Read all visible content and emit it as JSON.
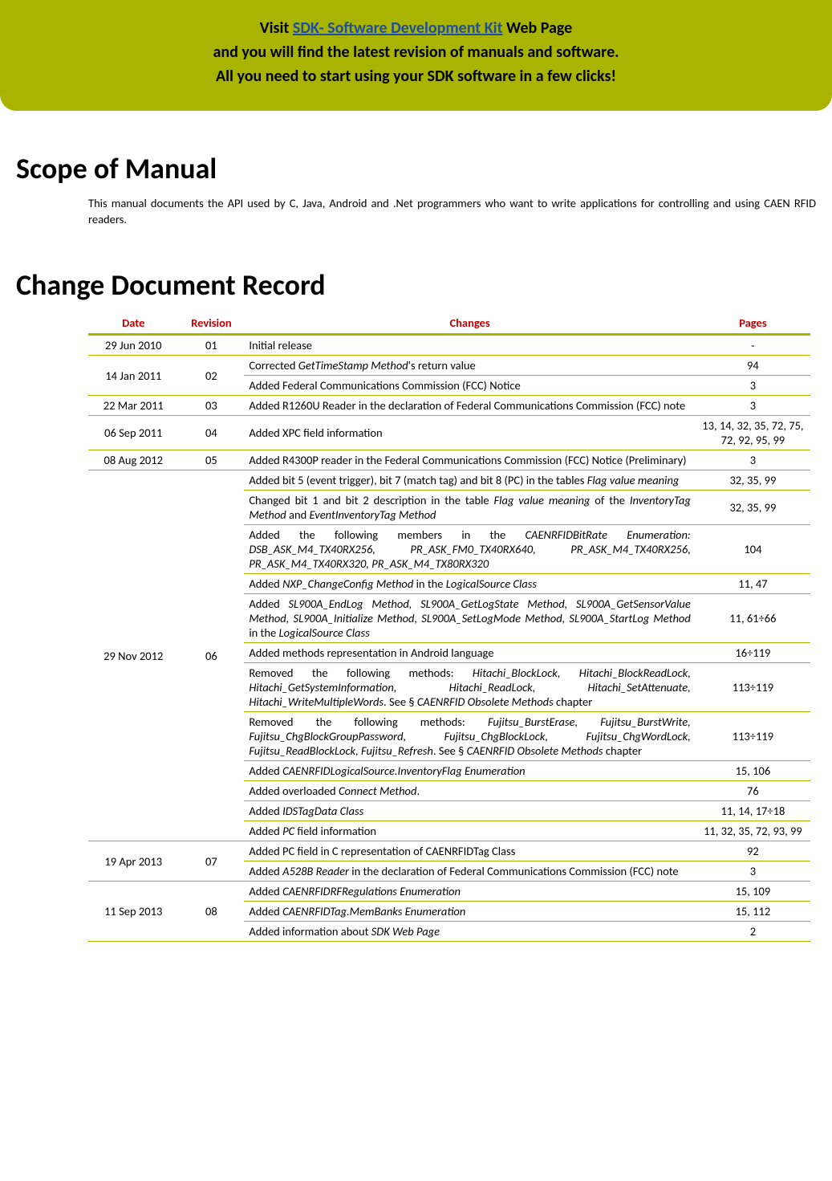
{
  "banner": {
    "line1_pre": "Visit ",
    "line1_link": "SDK- Software Development Kit",
    "line1_post": " Web Page",
    "line2": "and you will find the latest revision of manuals and software.",
    "line3": "All you need to start using your SDK software in a few clicks!"
  },
  "section1": {
    "title": "Scope of Manual",
    "body": "This manual documents the API used by C, Java, Android and .Net programmers who want to write applications for controlling and using CAEN RFID readers."
  },
  "section2": {
    "title": "Change Document Record"
  },
  "table": {
    "headers": {
      "date": "Date",
      "revision": "Revision",
      "changes": "Changes",
      "pages": "Pages"
    },
    "rows": [
      {
        "date": "29 Jun 2010",
        "rev": "01",
        "changes": "Initial release",
        "pages": "-"
      },
      {
        "date": "14 Jan 2011",
        "rev": "02",
        "rowspan": 2,
        "changes": "Corrected <i>GetTimeStamp Method</i>'s return value",
        "pages": "94"
      },
      {
        "changes": "Added Federal Communications Commission (FCC) Notice",
        "pages": "3"
      },
      {
        "date": "22 Mar 2011",
        "rev": "03",
        "changes": "Added R1260U Reader in the declaration of Federal Communications Commission (FCC) note",
        "pages": "3"
      },
      {
        "date": "06 Sep 2011",
        "rev": "04",
        "changes": "Added XPC field information",
        "pages": "13, 14, 32, 35, 72, 75, 72, 92, 95, 99"
      },
      {
        "date": "08 Aug 2012",
        "rev": "05",
        "changes": "Added R4300P reader in the Federal Communications Commission (FCC) Notice (Preliminary)",
        "pages": "3"
      },
      {
        "date": "29 Nov 2012",
        "rev": "06",
        "rowspan": 12,
        "changes": "Added bit 5 (event trigger), bit 7 (match tag) and bit 8 (PC) in the tables <i>Flag value meaning</i>",
        "pages": "32, 35, 99"
      },
      {
        "changes": "Changed bit 1 and bit 2 description in the table <i>Flag value meaning</i> of the <i>InventoryTag Method</i> and <i>EventInventoryTag Method</i>",
        "pages": "32, 35, 99"
      },
      {
        "changes": "Added the following members in the <i>CAENRFIDBitRate Enumeration: DSB_ASK_M4_TX40RX256, PR_ASK_FM0_TX40RX640, PR_ASK_M4_TX40RX256, PR_ASK_M4_TX40RX320, PR_ASK_M4_TX80RX320</i>",
        "pages": "104"
      },
      {
        "changes": "Added <i>NXP_ChangeConfig Method</i> in the <i>LogicalSource Class</i>",
        "pages": "11, 47"
      },
      {
        "changes": "Added <i>SL900A_EndLog Method, SL900A_GetLogState Method, SL900A_GetSensorValue Method, SL900A_Initialize Method, SL900A_SetLogMode Method, SL900A_StartLog Method</i> in the <i>LogicalSource Class</i>",
        "pages": "11, 61÷66"
      },
      {
        "changes": "Added methods representation in Android language",
        "pages": "16÷119"
      },
      {
        "changes": "Removed the following methods: <i>Hitachi_BlockLock, Hitachi_BlockReadLock, Hitachi_GetSystemInformation, Hitachi_ReadLock, Hitachi_SetAttenuate, Hitachi_WriteMultipleWords</i>. See § <i>CAENRFID Obsolete Methods</i> chapter",
        "pages": "113÷119"
      },
      {
        "changes": "Removed the following methods: <i>Fujitsu_BurstErase, Fujitsu_BurstWrite, Fujitsu_ChgBlockGroupPassword, Fujitsu_ChgBlockLock, Fujitsu_ChgWordLock, Fujitsu_ReadBlockLock, Fujitsu_Refresh</i>. See § <i>CAENRFID Obsolete Methods</i> chapter",
        "pages": "113÷119"
      },
      {
        "changes": "Added <i>CAENRFIDLogicalSource.InventoryFlag Enumeration</i>",
        "pages": "15, 106"
      },
      {
        "changes": "Added overloaded <i>Connect Method</i>.",
        "pages": "76"
      },
      {
        "changes": "Added <i>IDSTagData Class</i>",
        "pages": "11, 14, 17÷18"
      },
      {
        "changes": "Added <i>PC</i> field information",
        "pages": "11, 32, 35, 72, 93, 99"
      },
      {
        "date": "19 Apr 2013",
        "rev": "07",
        "rowspan": 2,
        "changes": "Added PC field in C representation of CAENRFIDTag Class",
        "pages": "92"
      },
      {
        "changes": "Added <i>A528B Reader</i> in the declaration of Federal Communications Commission (FCC) note",
        "pages": "3"
      },
      {
        "date": "11 Sep 2013",
        "rev": "08",
        "rowspan": 3,
        "changes": "Added <i>CAENRFIDRFRegulations Enumeration</i>",
        "pages": "15, 109"
      },
      {
        "changes": "Added <i>CAENRFIDTag.MemBanks Enumeration</i>",
        "pages": "15, 112"
      },
      {
        "changes": "Added information about <i>SDK Web Page</i>",
        "pages": "2"
      }
    ]
  },
  "colors": {
    "banner_bg": "#a8b400",
    "link": "#1f4e9c",
    "header_text": "#c00000",
    "border": "#a8b400",
    "text": "#000000"
  },
  "fonts": {
    "body_size": 14.5,
    "h1_size": 36,
    "banner_size": 20
  }
}
